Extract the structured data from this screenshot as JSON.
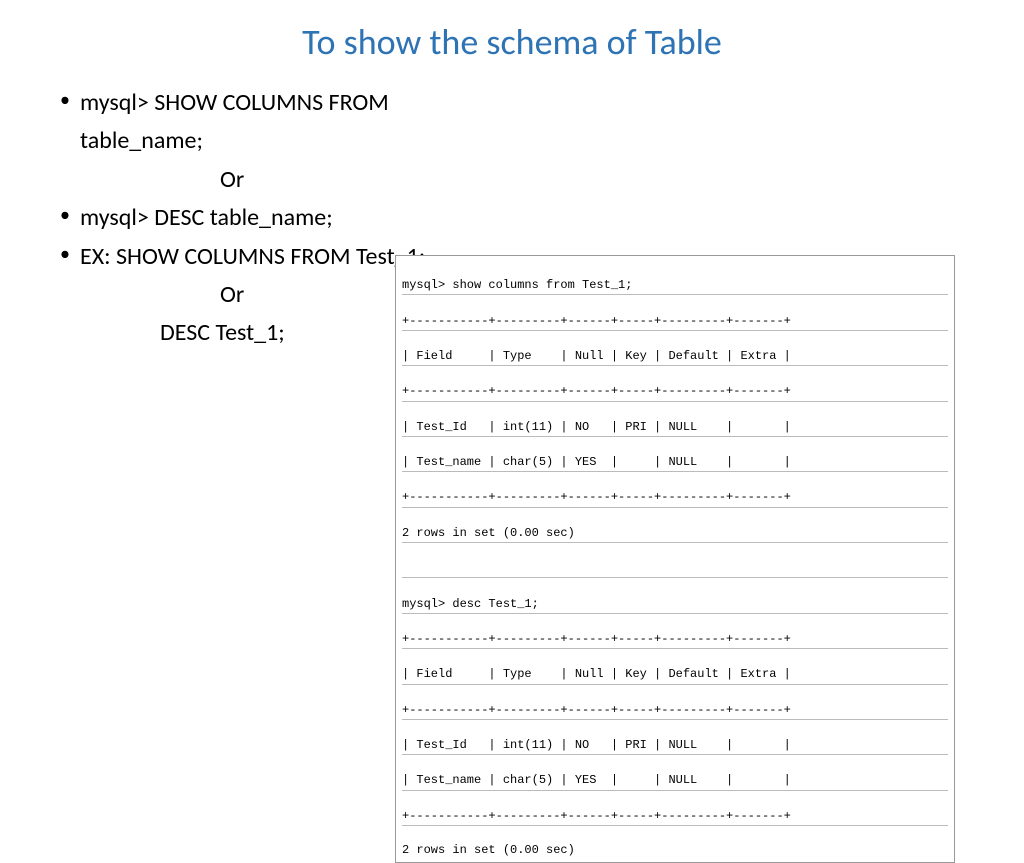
{
  "title": "To show the schema of Table",
  "bullets": {
    "item1": "mysql> SHOW COLUMNS FROM table_name;",
    "or1": "Or",
    "item2": "mysql> DESC table_name;",
    "item3": "EX: SHOW COLUMNS FROM Test_1;"
  },
  "left_lower": {
    "or2": "Or",
    "desc": "DESC Test_1;"
  },
  "console": {
    "line1": "mysql> show columns from Test_1;",
    "sep1": "+-----------+---------+------+-----+---------+-------+",
    "header1": "| Field     | Type    | Null | Key | Default | Extra |",
    "sep2": "+-----------+---------+------+-----+---------+-------+",
    "row1a": "| Test_Id   | int(11) | NO   | PRI | NULL    |       |",
    "row1b": "| Test_name | char(5) | YES  |     | NULL    |       |",
    "sep3": "+-----------+---------+------+-----+---------+-------+",
    "result1": "2 rows in set (0.00 sec)",
    "blank1": " ",
    "line2": "mysql> desc Test_1;",
    "sep4": "+-----------+---------+------+-----+---------+-------+",
    "header2": "| Field     | Type    | Null | Key | Default | Extra |",
    "sep5": "+-----------+---------+------+-----+---------+-------+",
    "row2a": "| Test_Id   | int(11) | NO   | PRI | NULL    |       |",
    "row2b": "| Test_name | char(5) | YES  |     | NULL    |       |",
    "sep6": "+-----------+---------+------+-----+---------+-------+",
    "result2": "2 rows in set (0.00 sec)"
  },
  "colors": {
    "title_color": "#2e74b5",
    "text_color": "#000000",
    "background": "#ffffff"
  }
}
